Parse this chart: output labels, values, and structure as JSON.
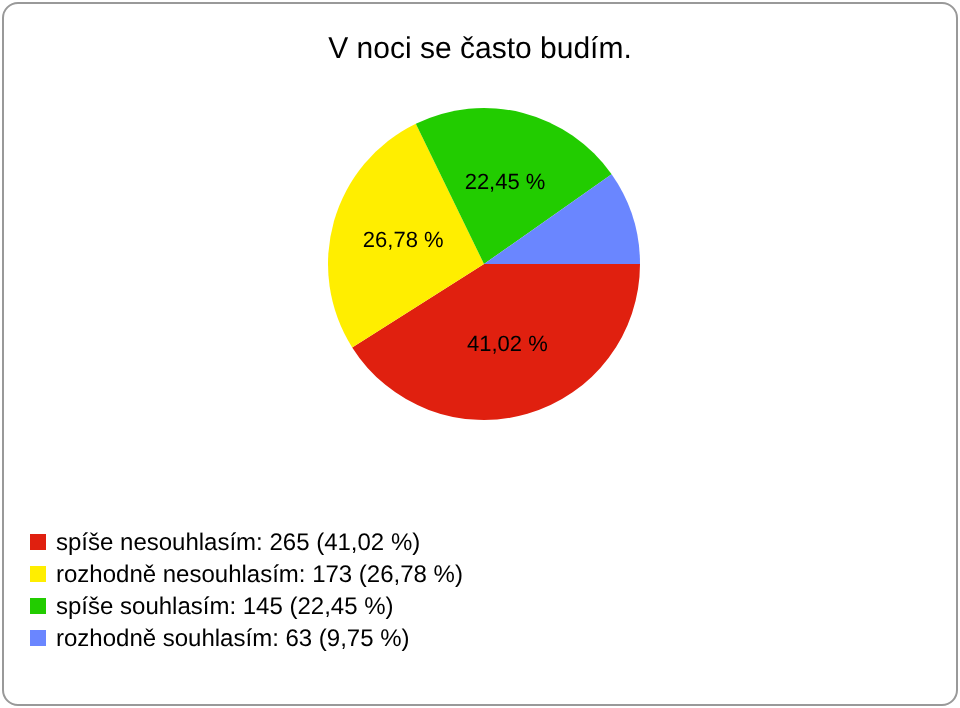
{
  "chart_data": {
    "type": "pie",
    "title": "V noci se často budím.",
    "categories": [
      "spíše nesouhlasím: 265 (41,02 %)",
      "rozhodně nesouhlasím: 173 (26,78 %)",
      "spíše souhlasím: 145 (22,45 %)",
      "rozhodně souhlasím: 63 (9,75 %)"
    ],
    "values": [
      41.02,
      26.78,
      22.45,
      9.75
    ],
    "colors": [
      "#e0200f",
      "#ffee00",
      "#22cc00",
      "#6a86ff"
    ],
    "value_labels": [
      "41,02 %",
      "26,78 %",
      "22,45 %",
      null
    ],
    "legend": "bottom left"
  }
}
